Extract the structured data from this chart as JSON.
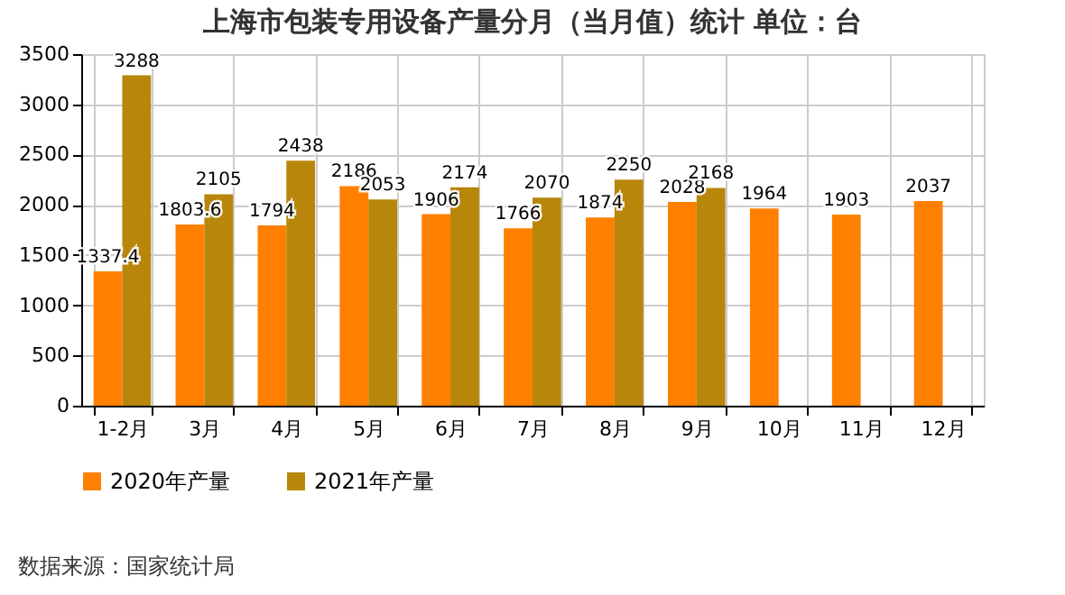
{
  "chart_data": {
    "type": "bar",
    "title": "上海市包装专用设备产量分月（当月值）统计 单位：台",
    "categories": [
      "1-2月",
      "3月",
      "4月",
      "5月",
      "6月",
      "7月",
      "8月",
      "9月",
      "10月",
      "11月",
      "12月"
    ],
    "series": [
      {
        "name": "2020年产量",
        "color": "#ff8000",
        "values": [
          1337.4,
          1803.6,
          1794,
          2186,
          1906,
          1766,
          1874,
          2028,
          1964,
          1903,
          2037
        ]
      },
      {
        "name": "2021年产量",
        "color": "#b8860b",
        "values": [
          3288,
          2105,
          2438,
          2053,
          2174,
          2070,
          2250,
          2168,
          null,
          null,
          null
        ]
      }
    ],
    "ylim": [
      0,
      3500
    ],
    "yticks": [
      0,
      500,
      1000,
      1500,
      2000,
      2500,
      3000,
      3500
    ],
    "grid": true,
    "legend": "bottom",
    "data_labels": true,
    "annotations": [
      "数据来源：国家统计局"
    ]
  }
}
